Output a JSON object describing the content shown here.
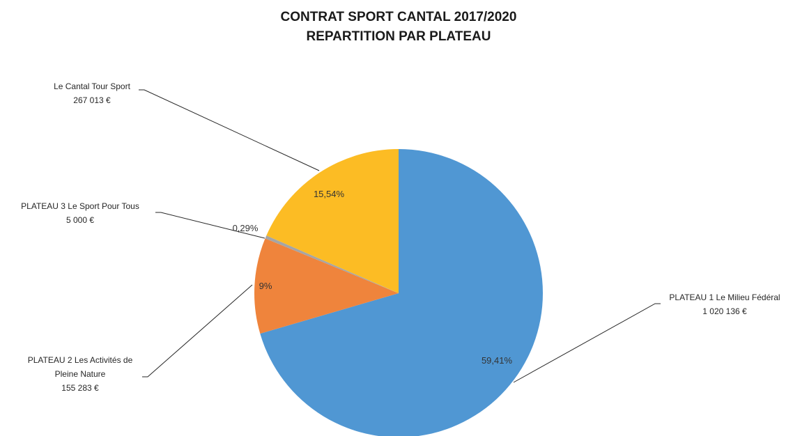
{
  "chart_data": {
    "type": "pie",
    "title_lines": [
      "CONTRAT SPORT CANTAL 2017/2020",
      "REPARTITION PAR PLATEAU"
    ],
    "legend": "none",
    "slices": [
      {
        "name_lines": [
          "PLATEAU 1 Le Milieu Fédéral"
        ],
        "amount": "1 020 136 €",
        "value": 1020136,
        "percent": "59,41%",
        "color": "#5097D3"
      },
      {
        "name_lines": [
          "PLATEAU 2 Les Activités de",
          "Pleine Nature"
        ],
        "amount": "155 283 €",
        "value": 155283,
        "percent": "9%",
        "color": "#EF843C"
      },
      {
        "name_lines": [
          "PLATEAU 3 Le Sport Pour Tous"
        ],
        "amount": "5 000 €",
        "value": 5000,
        "percent": "0,29%",
        "color": "#A5A5A5"
      },
      {
        "name_lines": [
          "Le Cantal Tour Sport"
        ],
        "amount": "267 013 €",
        "value": 267013,
        "percent": "15,54%",
        "color": "#FCBC24"
      }
    ]
  }
}
